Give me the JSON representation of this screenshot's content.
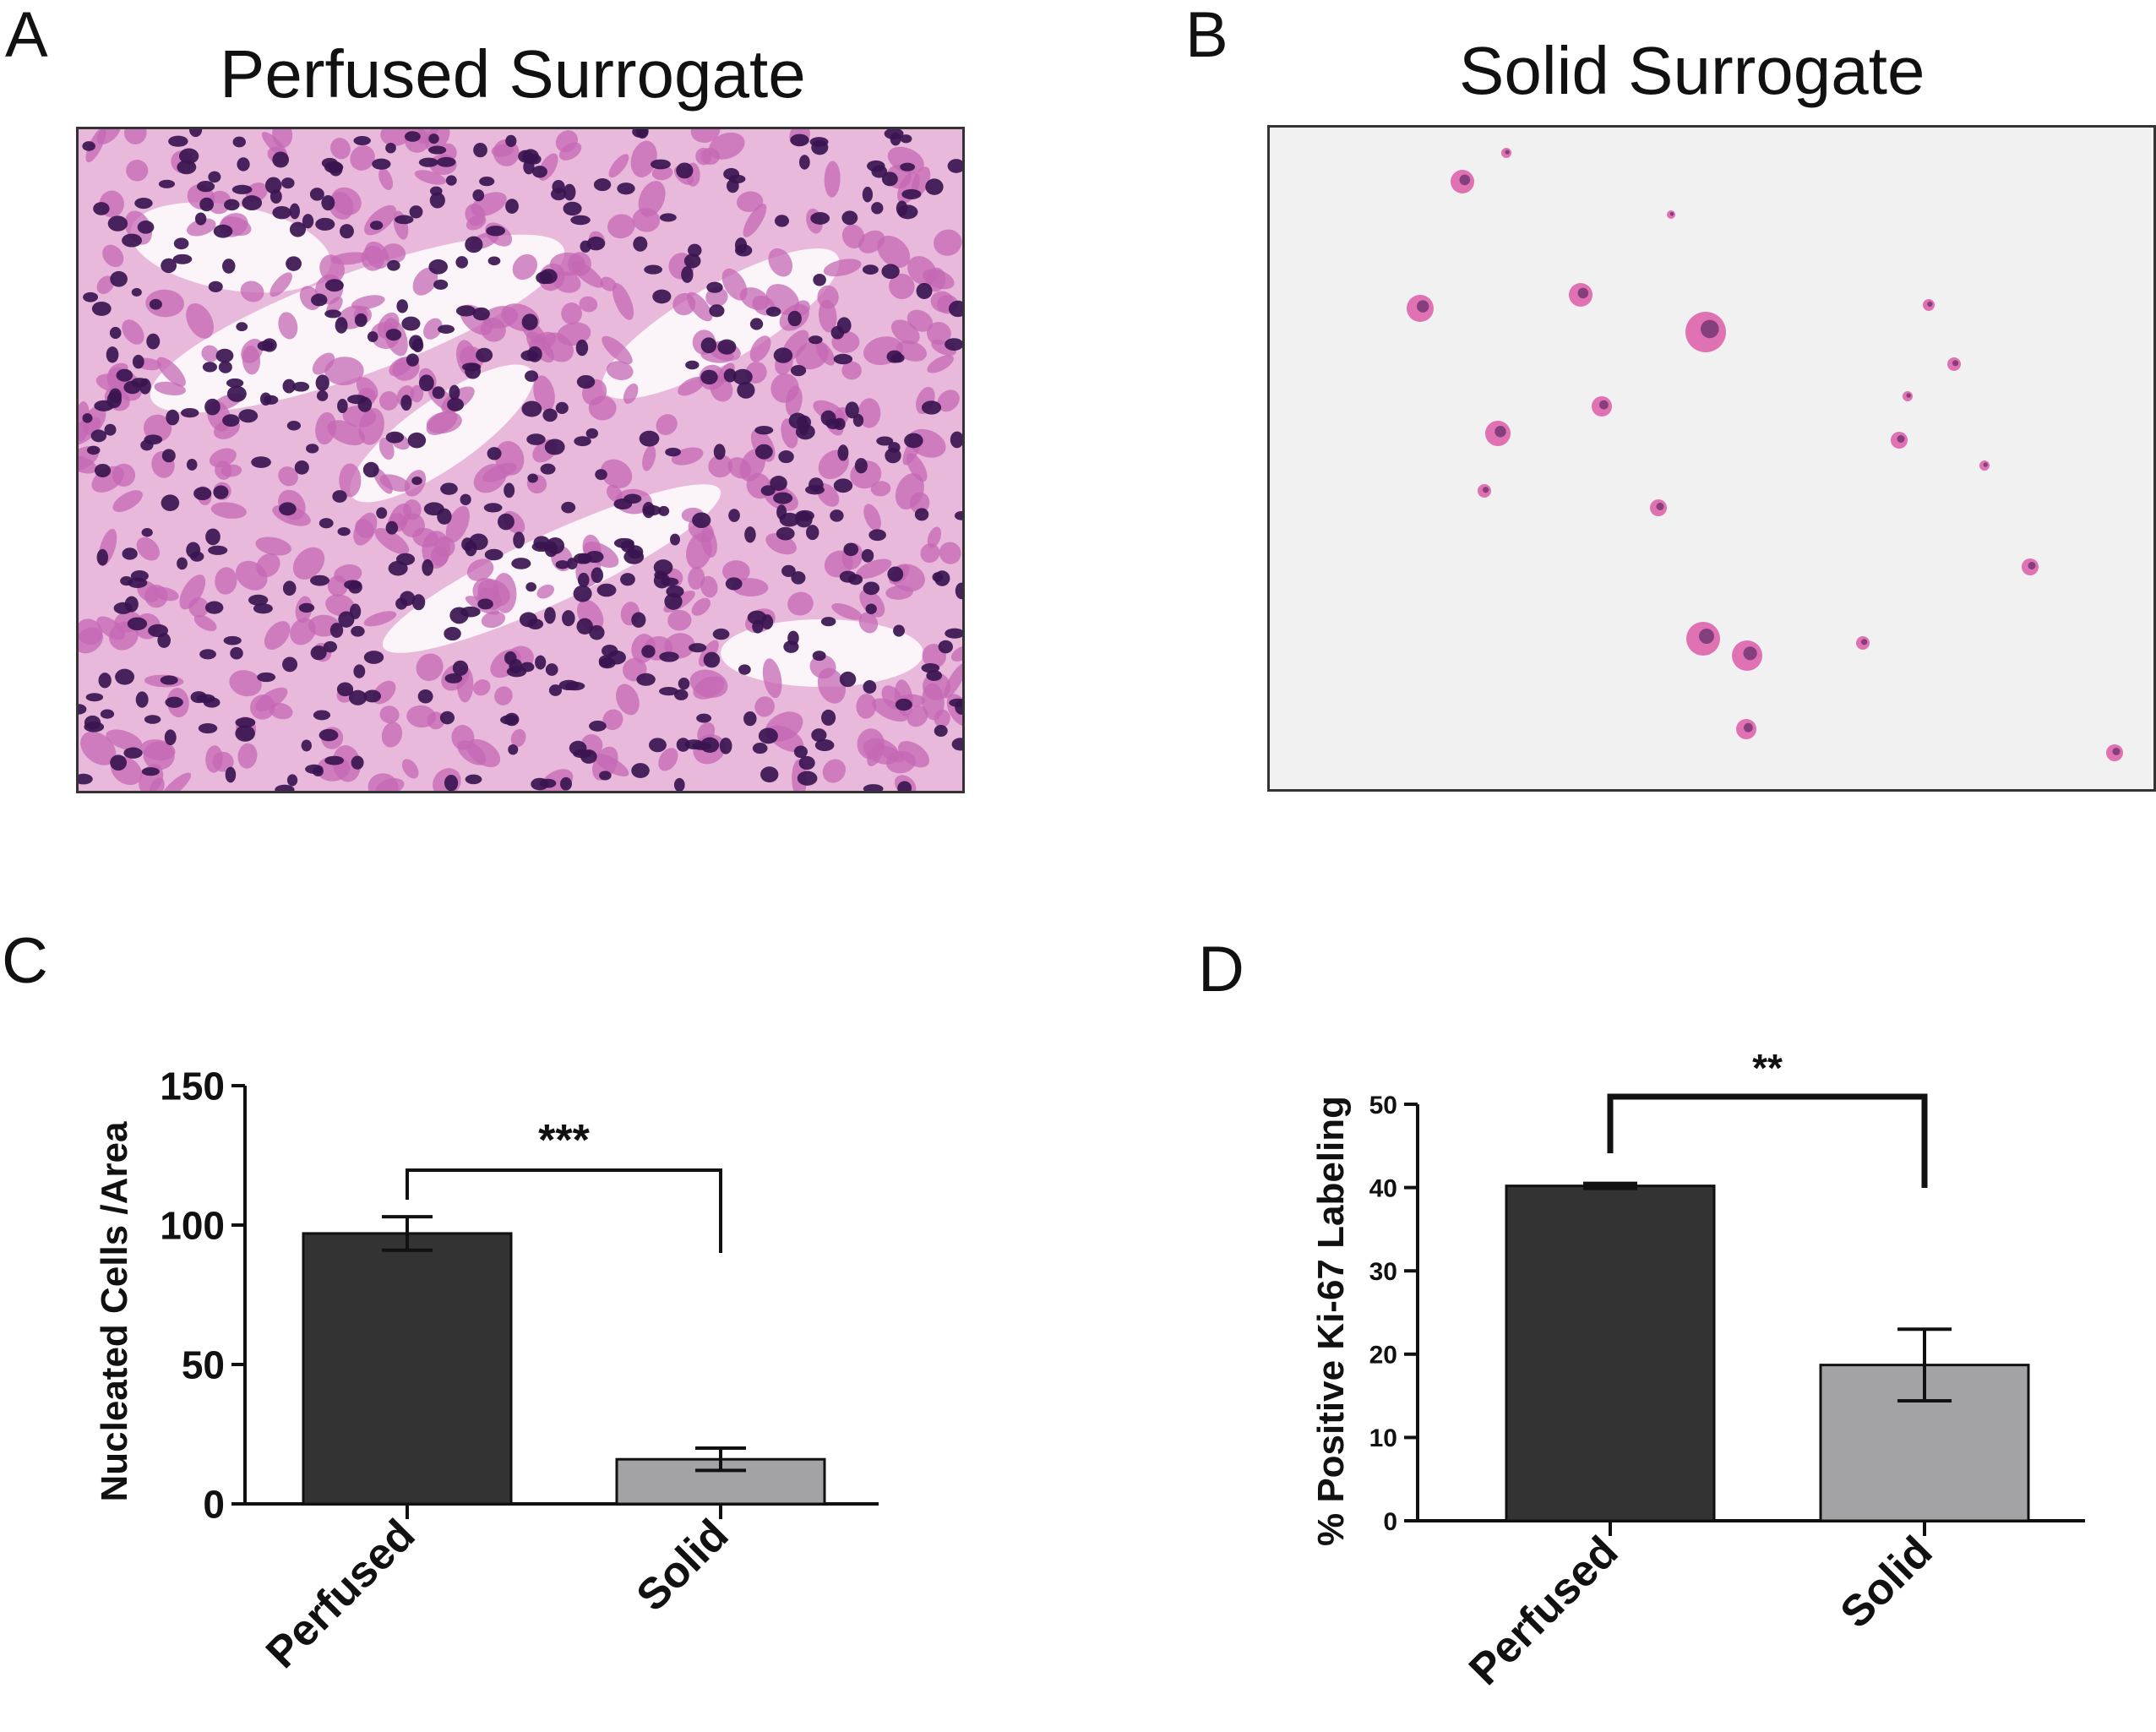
{
  "panels": {
    "a": {
      "letter": "A",
      "title": "Perfused Surrogate"
    },
    "b": {
      "letter": "B",
      "title": "Solid Surrogate"
    },
    "c": {
      "letter": "C"
    },
    "d": {
      "letter": "D"
    }
  },
  "colors": {
    "perfused_bar": "#333333",
    "solid_bar": "#a3a3a6",
    "axis": "#111111",
    "tissue_bg": "#e9b9dc",
    "nucleus": "#3a1550",
    "cytoplasm": "#c468b4",
    "sparse_bg": "#f1f1f1",
    "sparse_cell": "#dd5aa8"
  },
  "chart_data": [
    {
      "type": "bar",
      "categories": [
        "Perfused",
        "Solid"
      ],
      "values": [
        97,
        16
      ],
      "errors": [
        6,
        4
      ],
      "ylabel": "Nucleated Cells /Area",
      "ylim": [
        0,
        150
      ],
      "yticks": [
        "0",
        "50",
        "100",
        "150"
      ],
      "significance": "***",
      "grid": false,
      "bar_colors": [
        "#333333",
        "#a3a3a6"
      ]
    },
    {
      "type": "bar",
      "categories": [
        "Perfused",
        "Solid"
      ],
      "values": [
        40.2,
        18.7
      ],
      "errors": [
        0.3,
        4.3
      ],
      "ylabel": "% Positive Ki-67 Labeling",
      "ylim": [
        0,
        50
      ],
      "yticks": [
        "0",
        "10",
        "20",
        "30",
        "40",
        "50"
      ],
      "significance": "**",
      "grid": false,
      "bar_colors": [
        "#333333",
        "#a3a3a6"
      ]
    }
  ]
}
